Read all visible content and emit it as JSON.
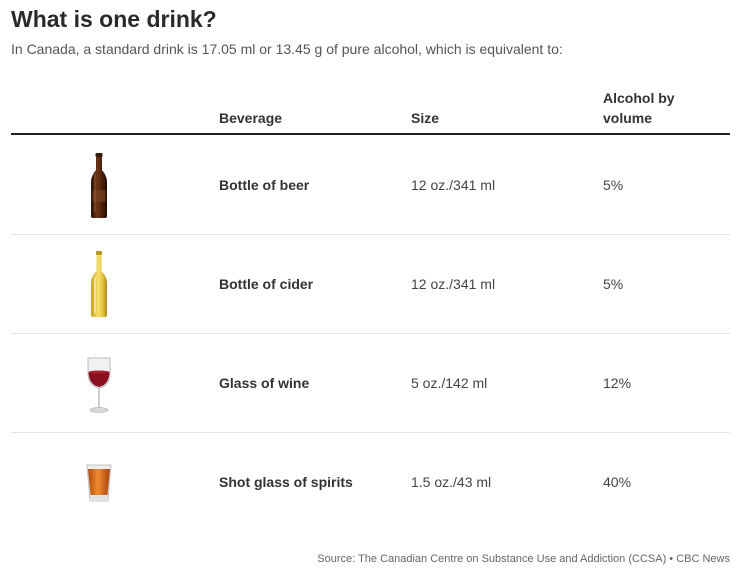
{
  "title": "What is one drink?",
  "subtitle": "In Canada, a standard drink is 17.05 ml or 13.45 g of pure alcohol, which is equivalent to:",
  "columns": {
    "beverage": "Beverage",
    "size": "Size",
    "abv": "Alcohol by volume"
  },
  "rows": [
    {
      "beverage": "Bottle of beer",
      "size": "12 oz./341 ml",
      "abv": "5%",
      "icon": "beer-bottle-icon"
    },
    {
      "beverage": "Bottle of cider",
      "size": "12 oz./341 ml",
      "abv": "5%",
      "icon": "cider-bottle-icon"
    },
    {
      "beverage": "Glass of wine",
      "size": "5 oz./142 ml",
      "abv": "12%",
      "icon": "wine-glass-icon"
    },
    {
      "beverage": "Shot glass of spirits",
      "size": "1.5 oz./43 ml",
      "abv": "40%",
      "icon": "shot-glass-icon"
    }
  ],
  "colors": {
    "beer": "#5a2a10",
    "cider": "#e8c840",
    "wine": "#8a1020",
    "spirits": "#d86a18"
  },
  "source": "Source: The Canadian Centre on Substance Use and Addiction (CCSA) • CBC News"
}
